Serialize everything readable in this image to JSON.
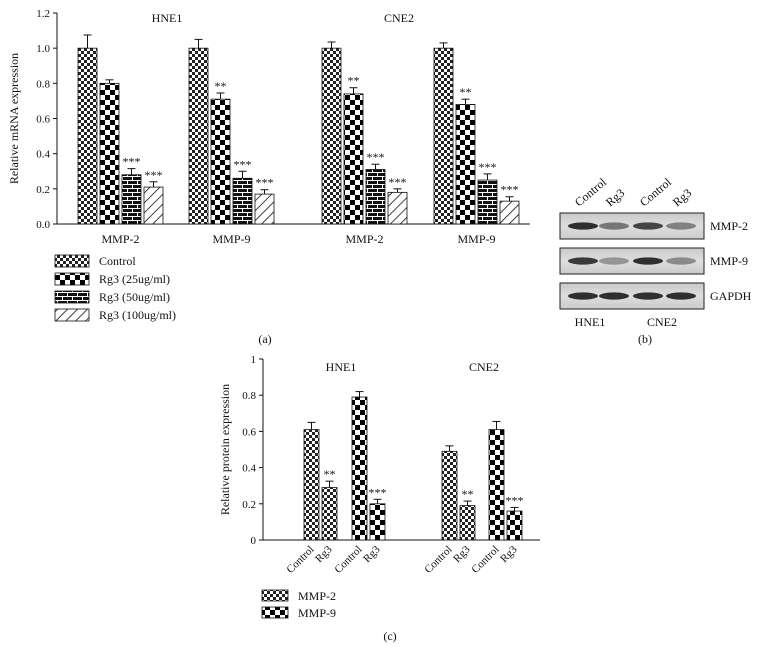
{
  "chart_data": [
    {
      "panel": "(a)",
      "type": "bar",
      "ylabel": "Relative mRNA expression",
      "ylim": [
        0,
        1.2
      ],
      "yticks": [
        "0.0",
        "0.2",
        "0.4",
        "0.6",
        "0.8",
        "1.0",
        "1.2"
      ],
      "cell_lines": [
        "HNE1",
        "CNE2"
      ],
      "categories": [
        "MMP-2",
        "MMP-9",
        "MMP-2",
        "MMP-9"
      ],
      "series": [
        {
          "name": "Control",
          "pattern": "checker-small",
          "values": [
            1.0,
            1.0,
            1.0,
            1.0
          ],
          "errors": [
            0.075,
            0.05,
            0.035,
            0.03
          ],
          "sig": [
            "",
            "",
            "",
            ""
          ]
        },
        {
          "name": "Rg3 (25ug/ml)",
          "pattern": "checker-large",
          "values": [
            0.8,
            0.71,
            0.74,
            0.68
          ],
          "errors": [
            0.02,
            0.035,
            0.035,
            0.03
          ],
          "sig": [
            "",
            "**",
            "**",
            "**"
          ]
        },
        {
          "name": "Rg3 (50ug/ml)",
          "pattern": "brick",
          "values": [
            0.28,
            0.26,
            0.31,
            0.25
          ],
          "errors": [
            0.035,
            0.04,
            0.03,
            0.035
          ],
          "sig": [
            "***",
            "***",
            "***",
            "***"
          ]
        },
        {
          "name": "Rg3 (100ug/ml)",
          "pattern": "diagonal",
          "values": [
            0.21,
            0.17,
            0.18,
            0.13
          ],
          "errors": [
            0.03,
            0.025,
            0.02,
            0.025
          ],
          "sig": [
            "***",
            "***",
            "***",
            "***"
          ]
        }
      ]
    },
    {
      "panel": "(b)",
      "type": "western-blot",
      "lane_labels": [
        "Control",
        "Rg3",
        "Control",
        "Rg3"
      ],
      "bands": [
        "MMP-2",
        "MMP-9",
        "GAPDH"
      ],
      "intensity": [
        [
          0.85,
          0.5,
          0.75,
          0.45
        ],
        [
          0.8,
          0.35,
          0.85,
          0.4
        ],
        [
          0.85,
          0.85,
          0.85,
          0.85
        ]
      ],
      "cell_lines": [
        "HNE1",
        "CNE2"
      ]
    },
    {
      "panel": "(c)",
      "type": "bar",
      "ylabel": "Relative protein expression",
      "ylim": [
        0,
        1.0
      ],
      "yticks": [
        "0",
        "0.2",
        "0.4",
        "0.6",
        "0.8",
        "1"
      ],
      "cell_lines": [
        "HNE1",
        "CNE2"
      ],
      "groups": [
        {
          "cell_line": "HNE1",
          "protein": "MMP-2",
          "labels": [
            "Control",
            "Rg3"
          ],
          "values": [
            0.61,
            0.29
          ],
          "errors": [
            0.04,
            0.035
          ],
          "sig": [
            "",
            "**"
          ]
        },
        {
          "cell_line": "HNE1",
          "protein": "MMP-9",
          "labels": [
            "Control",
            "Rg3"
          ],
          "values": [
            0.79,
            0.2
          ],
          "errors": [
            0.03,
            0.025
          ],
          "sig": [
            "",
            "***"
          ]
        },
        {
          "cell_line": "CNE2",
          "protein": "MMP-2",
          "labels": [
            "Control",
            "Rg3"
          ],
          "values": [
            0.49,
            0.19
          ],
          "errors": [
            0.03,
            0.025
          ],
          "sig": [
            "",
            "**"
          ]
        },
        {
          "cell_line": "CNE2",
          "protein": "MMP-9",
          "labels": [
            "Control",
            "Rg3"
          ],
          "values": [
            0.61,
            0.16
          ],
          "errors": [
            0.045,
            0.02
          ],
          "sig": [
            "",
            "***"
          ]
        }
      ],
      "legend": [
        {
          "name": "MMP-2",
          "pattern": "checker-small"
        },
        {
          "name": "MMP-9",
          "pattern": "checker-large"
        }
      ]
    }
  ]
}
